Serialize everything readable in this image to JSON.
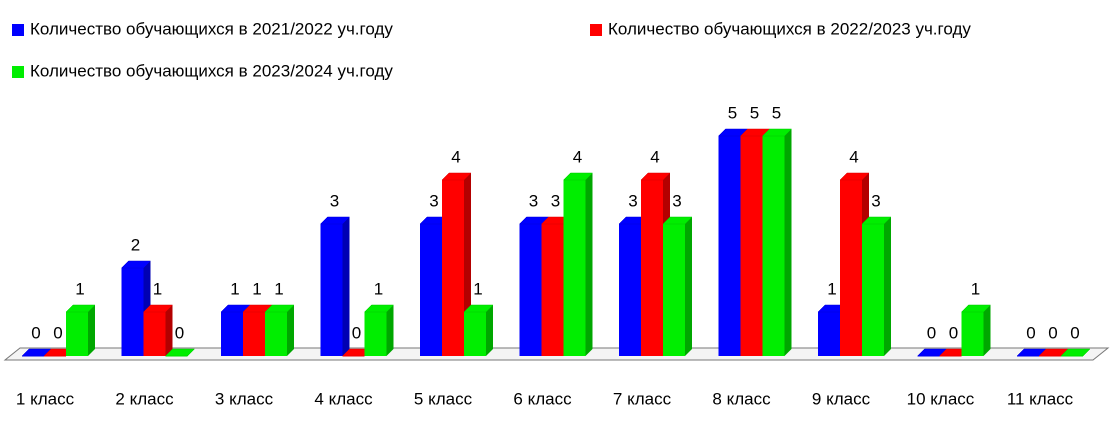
{
  "chart_data": {
    "type": "bar3d",
    "categories": [
      "1 класс",
      "2 класс",
      "3 класс",
      "4 класс",
      "5 класс",
      "6 класс",
      "7 класс",
      "8 класс",
      "9 класс",
      "10 класс",
      "11 класс"
    ],
    "series": [
      {
        "name": "Количество обучающихся в 2021/2022 уч.году",
        "color": "#0000ff",
        "values": [
          0,
          2,
          1,
          3,
          3,
          3,
          3,
          5,
          1,
          0,
          0
        ]
      },
      {
        "name": "Количество обучающихся в 2022/2023 уч.году",
        "color": "#ff0000",
        "values": [
          0,
          1,
          1,
          0,
          4,
          3,
          4,
          5,
          4,
          0,
          0
        ]
      },
      {
        "name": "Количество обучающихся в 2023/2024 уч.году",
        "color": "#00ee00",
        "values": [
          1,
          0,
          1,
          1,
          1,
          4,
          3,
          5,
          3,
          1,
          0
        ]
      }
    ],
    "legend": "top"
  }
}
